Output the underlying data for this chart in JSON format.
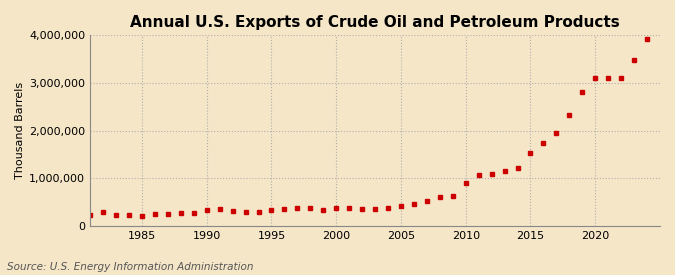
{
  "title": "Annual U.S. Exports of Crude Oil and Petroleum Products",
  "ylabel": "Thousand Barrels",
  "source": "Source: U.S. Energy Information Administration",
  "background_color": "#f5e6c8",
  "plot_bg_color": "#f5e6c8",
  "marker_color": "#cc0000",
  "marker": "s",
  "marker_size": 3.5,
  "title_fontsize": 11,
  "title_fontweight": "bold",
  "years": [
    1981,
    1982,
    1983,
    1984,
    1985,
    1986,
    1987,
    1988,
    1989,
    1990,
    1991,
    1992,
    1993,
    1994,
    1995,
    1996,
    1997,
    1998,
    1999,
    2000,
    2001,
    2002,
    2003,
    2004,
    2005,
    2006,
    2007,
    2008,
    2009,
    2010,
    2011,
    2012,
    2013,
    2014,
    2015,
    2016,
    2017,
    2018,
    2019,
    2020,
    2021,
    2022,
    2023,
    2024
  ],
  "values": [
    228530,
    287485,
    237066,
    229059,
    213494,
    242786,
    259987,
    265578,
    276049,
    332178,
    359609,
    316099,
    294462,
    296018,
    330178,
    359882,
    371879,
    374748,
    331820,
    380926,
    371195,
    349711,
    354359,
    383640,
    420397,
    456059,
    516427,
    601636,
    621069,
    895015,
    1076082,
    1080066,
    1147099,
    1218524,
    1528637,
    1740067,
    1950965,
    2323017,
    2802701,
    3094497,
    3107399,
    3095513,
    3473760,
    3929000
  ],
  "ylim": [
    0,
    4000000
  ],
  "yticks": [
    0,
    1000000,
    2000000,
    3000000,
    4000000
  ],
  "xlim": [
    1981,
    2025
  ],
  "xticks": [
    1985,
    1990,
    1995,
    2000,
    2005,
    2010,
    2015,
    2020
  ],
  "grid_color": "#aaaaaa",
  "grid_linestyle": ":",
  "grid_linewidth": 0.8,
  "spine_color": "#888888",
  "tick_fontsize": 8,
  "ylabel_fontsize": 8,
  "source_fontsize": 7.5
}
